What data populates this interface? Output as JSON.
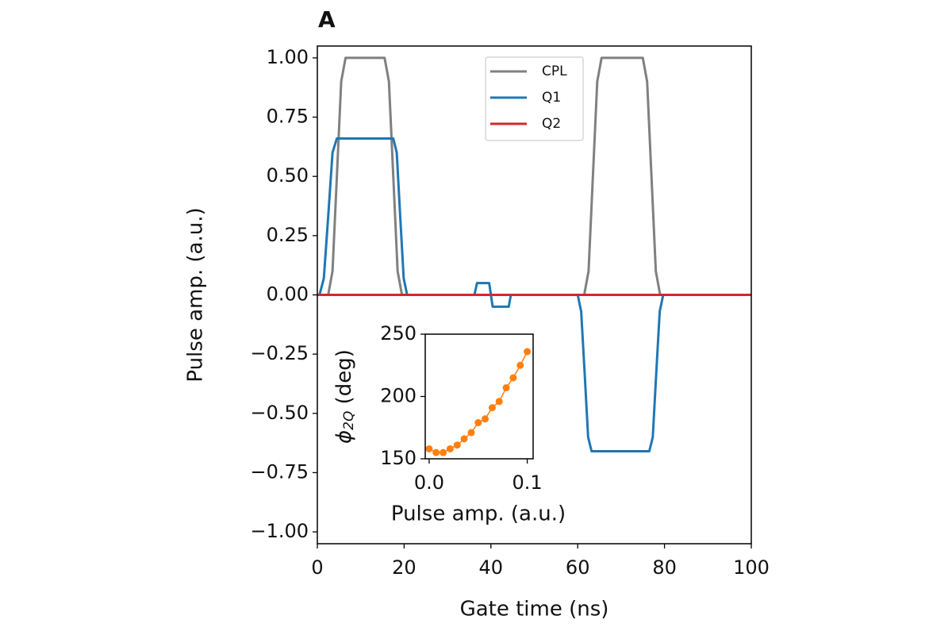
{
  "chart_data": [
    {
      "type": "line",
      "panel_label": "A",
      "x_label": "Gate time (ns)",
      "y_label": "Pulse amp. (a.u.)",
      "xlim": [
        0,
        100
      ],
      "xticks": [
        0,
        20,
        40,
        60,
        80,
        100
      ],
      "ylim": [
        -1.05,
        1.05
      ],
      "yticks": [
        {
          "value": -1,
          "label": "−1.00"
        },
        {
          "value": -0.75,
          "label": "−0.75"
        },
        {
          "value": -0.5,
          "label": "−0.50"
        },
        {
          "value": -0.25,
          "label": "−0.25"
        },
        {
          "value": 0,
          "label": "0.00"
        },
        {
          "value": 0.25,
          "label": "0.25"
        },
        {
          "value": 0.5,
          "label": "0.50"
        },
        {
          "value": 0.75,
          "label": "0.75"
        },
        {
          "value": 1,
          "label": "1.00"
        }
      ],
      "legend": "upper center",
      "series": [
        {
          "name": "CPL",
          "color": "#808080",
          "x": [
            0,
            2.5,
            3.5,
            4.5,
            5.5,
            6.5,
            15.5,
            16.5,
            17.5,
            18.5,
            19.5,
            61.5,
            62.5,
            63.5,
            64.5,
            65.5,
            75,
            76,
            77,
            78,
            79,
            100
          ],
          "values": [
            0,
            0,
            0.1,
            0.5,
            0.9,
            1,
            1,
            0.9,
            0.5,
            0.1,
            0,
            0,
            0.1,
            0.5,
            0.9,
            1,
            1,
            0.9,
            0.5,
            0.1,
            0,
            0
          ]
        },
        {
          "name": "Q1",
          "color": "#1f77b4",
          "x": [
            0,
            0.5,
            1.5,
            2.5,
            3.5,
            4.5,
            17.5,
            18.3,
            19.1,
            19.9,
            20.7,
            36.2,
            36.8,
            39.6,
            40.4,
            44.1,
            44.6,
            60,
            60.8,
            61.6,
            62.4,
            63.2,
            76.5,
            77.3,
            78.1,
            78.9,
            79.7,
            100
          ],
          "values": [
            0,
            0,
            0.07,
            0.33,
            0.6,
            0.66,
            0.66,
            0.6,
            0.33,
            0.07,
            0,
            0,
            0.05,
            0.05,
            -0.05,
            -0.05,
            0,
            0,
            -0.07,
            -0.33,
            -0.6,
            -0.66,
            -0.66,
            -0.6,
            -0.33,
            -0.07,
            0,
            0
          ]
        },
        {
          "name": "Q2",
          "color": "#d62728",
          "x": [
            0,
            100
          ],
          "values": [
            0,
            0
          ]
        }
      ]
    },
    {
      "type": "line",
      "marker": true,
      "x_label": "Pulse amp. (a.u.)",
      "y_label_parts": [
        "ϕ",
        "2Q",
        " (deg)"
      ],
      "xlim": [
        -0.004,
        0.106
      ],
      "xticks": [
        {
          "value": 0,
          "label": "0.0"
        },
        {
          "value": 0.1,
          "label": "0.1"
        }
      ],
      "ylim": [
        150,
        250
      ],
      "yticks": [
        150,
        200,
        250
      ],
      "series": [
        {
          "color": "#ff7f0e",
          "x": [
            0,
            0.0071,
            0.0143,
            0.0214,
            0.0286,
            0.0357,
            0.0429,
            0.05,
            0.0571,
            0.0643,
            0.0714,
            0.0786,
            0.0857,
            0.0929,
            0.1
          ],
          "values": [
            158,
            155,
            155,
            158,
            161,
            166,
            171,
            179,
            182,
            191,
            196,
            207,
            215,
            225,
            236
          ]
        }
      ]
    }
  ]
}
